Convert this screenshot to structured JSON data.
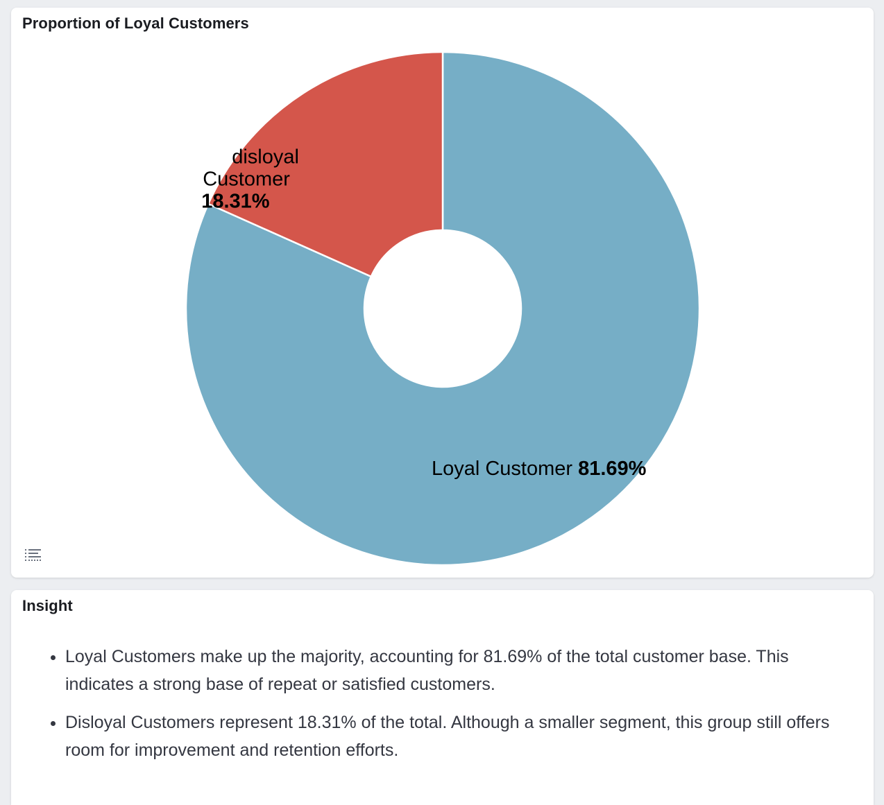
{
  "chart_panel": {
    "title": "Proportion of Loyal Customers",
    "legend_toggle_icon": "list-icon"
  },
  "chart_data": {
    "type": "pie",
    "donut": true,
    "title": "",
    "slices": [
      {
        "label": "Loyal Customer",
        "label_lines": [
          "Loyal Customer"
        ],
        "value": 81.69,
        "percent_label": "81.69%",
        "color": "#76aec6"
      },
      {
        "label": "disloyal Customer",
        "label_lines": [
          "disloyal",
          "Customer"
        ],
        "value": 18.31,
        "percent_label": "18.31%",
        "color": "#d4564b"
      }
    ]
  },
  "insight_panel": {
    "title": "Insight",
    "bullets": [
      "Loyal Customers make up the majority, accounting for 81.69% of the total customer base. This indicates a strong base of repeat or satisfied customers.",
      "Disloyal Customers represent 18.31% of the total. Although a smaller segment, this group still offers room for improvement and retention efforts."
    ]
  }
}
